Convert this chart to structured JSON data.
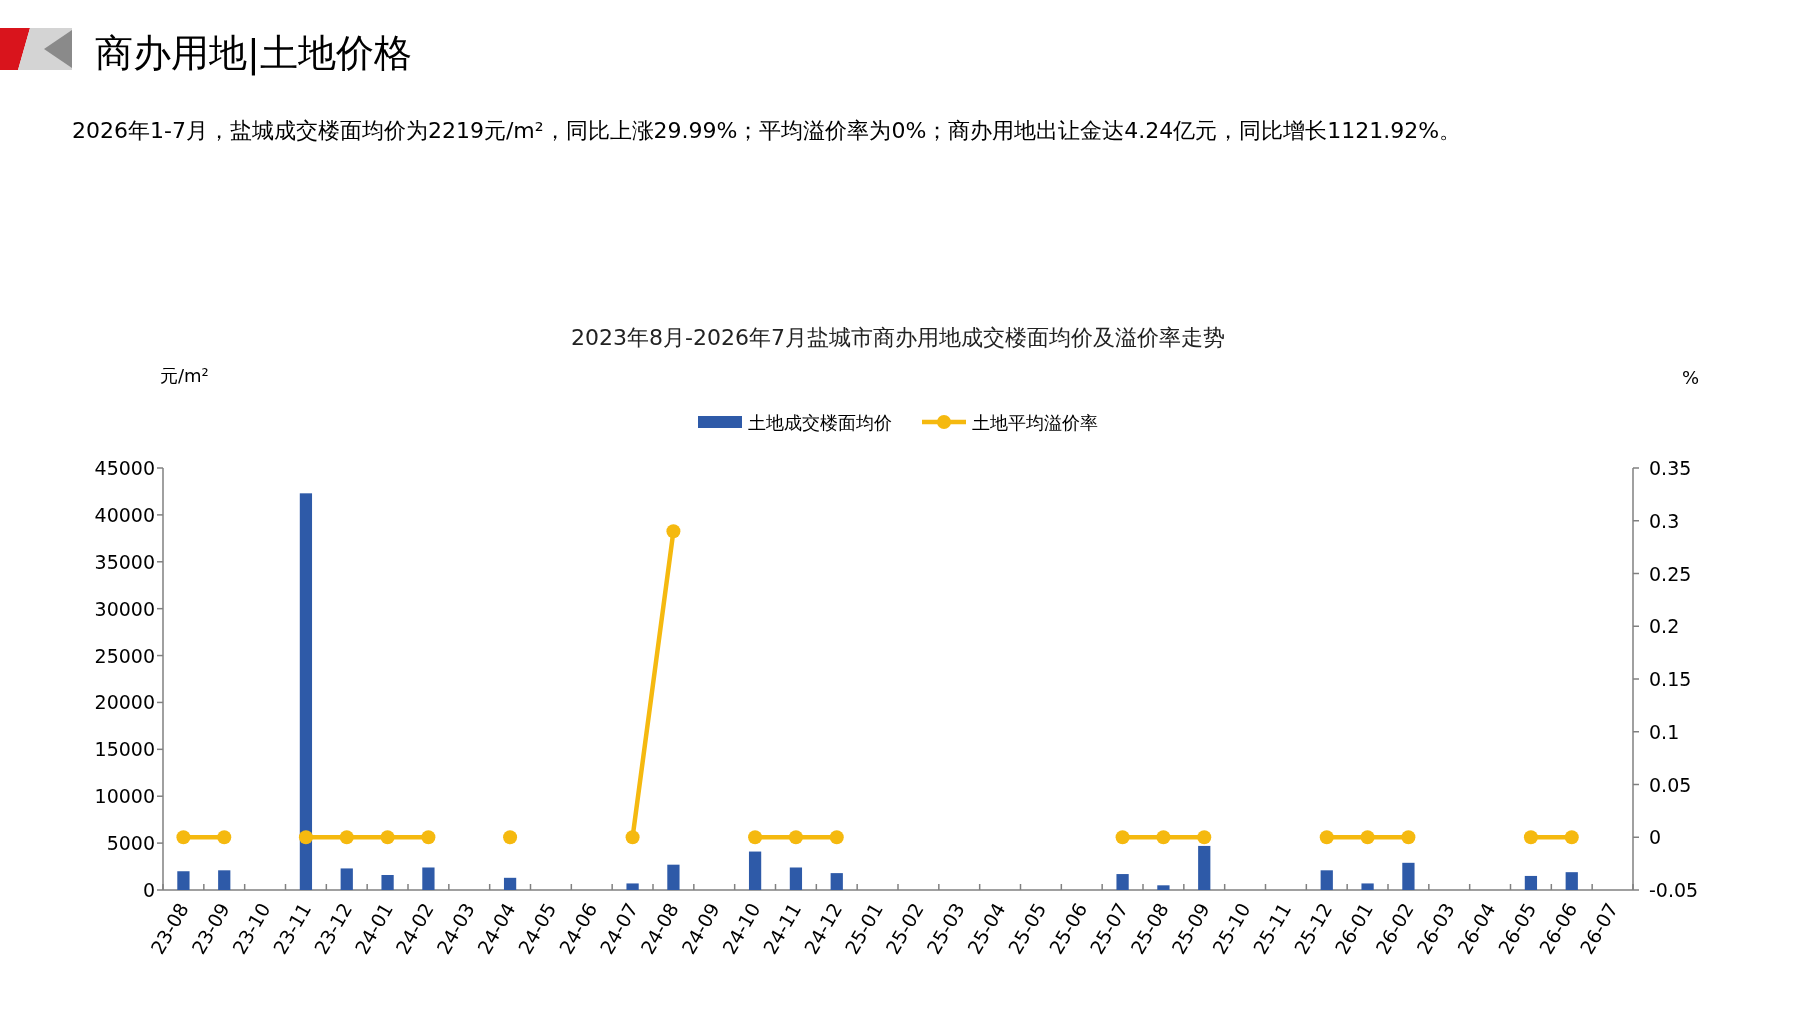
{
  "chart_data": {
    "type": "bar",
    "title": "2023年8月-2026年7月盐城市商办用地成交楼面均价及溢价率走势",
    "annotations": [
      "商办用地|土地价格",
      "2026年1-7月，盐城成交楼面均价为2219元/m²，同比上涨29.99%；平均溢价率为0%；商办用地出让金达4.24亿元，同比增长1121.92%。"
    ],
    "ylabel": "元/m²",
    "y2label": "%",
    "categories": [
      "23-08",
      "23-09",
      "23-10",
      "23-11",
      "23-12",
      "24-01",
      "24-02",
      "24-03",
      "24-04",
      "24-05",
      "24-06",
      "24-07",
      "24-08",
      "24-09",
      "24-10",
      "24-11",
      "24-12",
      "25-01",
      "25-02",
      "25-03",
      "25-04",
      "25-05",
      "25-06",
      "25-07",
      "25-08",
      "25-09",
      "25-10",
      "25-11",
      "25-12",
      "26-01",
      "26-02",
      "26-03",
      "26-04",
      "26-05",
      "26-06",
      "26-07"
    ],
    "series": [
      {
        "name": "土地成交楼面均价",
        "color": "#2e5aa8",
        "values": [
          2000,
          2100,
          null,
          42300,
          2300,
          1600,
          2400,
          null,
          1300,
          null,
          null,
          700,
          2700,
          null,
          4100,
          2400,
          1800,
          null,
          null,
          null,
          null,
          null,
          null,
          1700,
          500,
          4700,
          null,
          null,
          2100,
          700,
          2900,
          null,
          null,
          1500,
          1900,
          null
        ]
      },
      {
        "name": "土地平均溢价率",
        "type": "line",
        "axis": "y2",
        "color": "#f5b90f",
        "values": [
          0,
          0,
          null,
          0,
          0,
          0,
          0,
          null,
          0,
          null,
          null,
          0,
          0.29,
          null,
          0,
          0,
          0,
          null,
          null,
          null,
          null,
          null,
          null,
          0,
          0,
          0,
          null,
          null,
          0,
          0,
          0,
          null,
          null,
          0,
          0,
          null
        ]
      }
    ],
    "ylim": [
      0,
      45000
    ],
    "yticks": [
      0,
      5000,
      10000,
      15000,
      20000,
      25000,
      30000,
      35000,
      40000,
      45000
    ],
    "y2lim": [
      -0.05,
      0.35
    ],
    "y2ticks": [
      -0.05,
      0,
      0.05,
      0.1,
      0.15,
      0.2,
      0.25,
      0.3,
      0.35
    ],
    "marker": "circle",
    "line_style": "solid",
    "grid": false,
    "legend": "top"
  }
}
